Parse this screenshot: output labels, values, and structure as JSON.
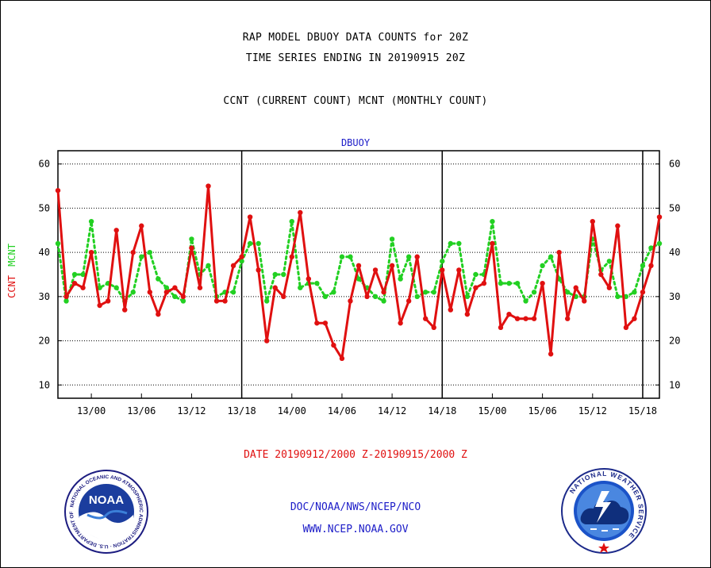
{
  "titles": {
    "line1": "RAP MODEL DBUOY DATA COUNTS for 20Z",
    "line2": "TIME SERIES ENDING IN 20190915 20Z",
    "line3": "CCNT (CURRENT COUNT) MCNT (MONTHLY COUNT)",
    "subtitle": "DBUOY",
    "daterange": "DATE 20190912/2000 Z-20190915/2000 Z"
  },
  "ylabels": {
    "ccnt": "CCNT",
    "mcnt": "MCNT"
  },
  "footer": {
    "line1": "DOC/NOAA/NWS/NCEP/NCO",
    "line2": "WWW.NCEP.NOAA.GOV"
  },
  "logos": {
    "noaa": {
      "icon": "noaa-logo",
      "text": "NOAA",
      "ring": "NATIONAL OCEANIC AND ATMOSPHERIC ADMINISTRATION · U.S. DEPARTMENT OF COMMERCE"
    },
    "nws": {
      "icon": "nws-logo",
      "ring": "NATIONAL WEATHER SERVICE"
    }
  },
  "colors": {
    "ccnt": "#e01010",
    "mcnt": "#22d022",
    "title": "#000000",
    "footer": "#1c1cc8"
  },
  "chart_data": {
    "type": "line",
    "ylim": [
      7,
      63
    ],
    "yticks": [
      10,
      20,
      30,
      40,
      50,
      60
    ],
    "grid": true,
    "xlim": [
      0,
      72
    ],
    "xticks": [
      {
        "hour": 4,
        "label": "13/00"
      },
      {
        "hour": 10,
        "label": "13/06"
      },
      {
        "hour": 16,
        "label": "13/12"
      },
      {
        "hour": 22,
        "label": "13/18"
      },
      {
        "hour": 28,
        "label": "14/00"
      },
      {
        "hour": 34,
        "label": "14/06"
      },
      {
        "hour": 40,
        "label": "14/12"
      },
      {
        "hour": 46,
        "label": "14/18"
      },
      {
        "hour": 52,
        "label": "15/00"
      },
      {
        "hour": 58,
        "label": "15/06"
      },
      {
        "hour": 64,
        "label": "15/12"
      },
      {
        "hour": 70,
        "label": "15/18"
      }
    ],
    "day_boundaries": [
      22,
      46,
      70
    ],
    "series": [
      {
        "name": "CCNT",
        "color": "#e01010",
        "values": [
          54,
          30,
          33,
          32,
          40,
          28,
          29,
          45,
          27,
          40,
          46,
          31,
          26,
          31,
          32,
          30,
          41,
          32,
          55,
          29,
          29,
          37,
          39,
          48,
          36,
          20,
          32,
          30,
          39,
          49,
          34,
          24,
          24,
          19,
          16,
          29,
          37,
          30,
          36,
          31,
          37,
          24,
          29,
          39,
          25,
          23,
          36,
          27,
          36,
          26,
          32,
          33,
          42,
          23,
          26,
          25,
          25,
          25,
          33,
          17,
          40,
          25,
          32,
          29,
          47,
          35,
          32,
          46,
          23,
          25,
          31,
          37,
          48
        ]
      },
      {
        "name": "MCNT",
        "color": "#22d022",
        "values": [
          42,
          29,
          35,
          35,
          47,
          32,
          33,
          32,
          29,
          31,
          39,
          40,
          34,
          32,
          30,
          29,
          43,
          35,
          37,
          30,
          31,
          31,
          38,
          42,
          42,
          29,
          35,
          35,
          47,
          32,
          33,
          33,
          30,
          31,
          39,
          39,
          34,
          32,
          30,
          29,
          43,
          34,
          39,
          30,
          31,
          31,
          38,
          42,
          42,
          30,
          35,
          35,
          47,
          33,
          33,
          33,
          29,
          31,
          37,
          39,
          34,
          31,
          30,
          30,
          43,
          36,
          38,
          30,
          30,
          31,
          37,
          41,
          42
        ]
      }
    ]
  }
}
